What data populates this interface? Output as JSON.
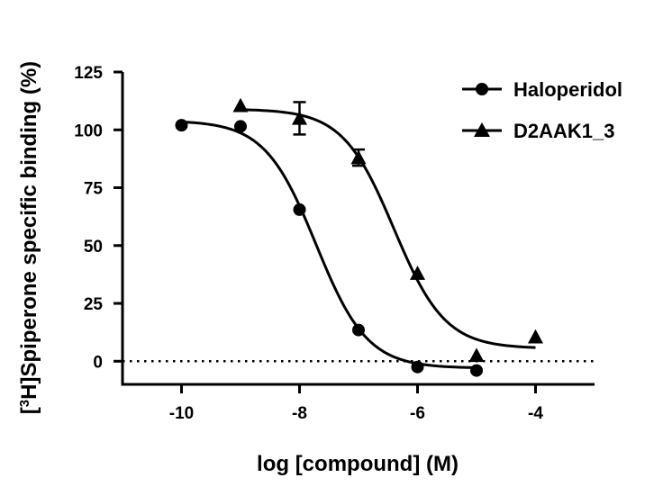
{
  "chart_data": {
    "type": "scatter",
    "title": "",
    "xlabel": "log [compound] (M)",
    "ylabel": {
      "prefix": "[",
      "superscript": "3",
      "rest": "H]Spiperone specific binding (%)"
    },
    "xlim": [
      -11,
      -3
    ],
    "ylim": [
      -10,
      125
    ],
    "xticks": [
      -10,
      -8,
      -6,
      -4
    ],
    "xtick_labels": [
      "-10",
      "-8",
      "-6",
      "-4"
    ],
    "yticks": [
      0,
      25,
      50,
      75,
      100,
      125
    ],
    "ytick_labels": [
      "0",
      "25",
      "50",
      "75",
      "100",
      "125"
    ],
    "grid": false,
    "reference_line": {
      "y": 0,
      "style": "dotted"
    },
    "legend_position": "top-right",
    "series": [
      {
        "name": "Haloperidol",
        "marker": "circle",
        "color": "#000000",
        "x": [
          -10,
          -9,
          -8,
          -7,
          -6,
          -5
        ],
        "y": [
          102,
          101.5,
          65.5,
          13.5,
          -2.5,
          -4
        ],
        "err": [
          0,
          0,
          0,
          0,
          0,
          0
        ],
        "fit": {
          "top": 104,
          "bottom": -3,
          "logIC50": -7.72,
          "hill": 1.0
        }
      },
      {
        "name": "D2AAK1_3",
        "marker": "triangle",
        "color": "#000000",
        "x": [
          -9,
          -8,
          -7,
          -6,
          -5,
          -4
        ],
        "y": [
          110.5,
          105,
          88,
          38,
          2.5,
          10.5
        ],
        "err": [
          0,
          7,
          3.5,
          0,
          0,
          0
        ],
        "fit": {
          "top": 109,
          "bottom": 5.5,
          "logIC50": -6.4,
          "hill": 1.0
        }
      }
    ]
  }
}
